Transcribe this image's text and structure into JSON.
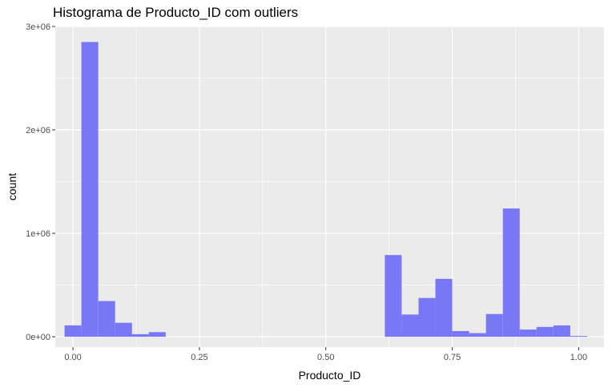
{
  "chart_data": {
    "type": "bar",
    "title": "Histograma de Producto_ID com outliers",
    "xlabel": "Producto_ID",
    "ylabel": "count",
    "xlim": [
      -0.035,
      1.05
    ],
    "ylim": [
      -100000,
      3000000
    ],
    "xticks": [
      0.0,
      0.25,
      0.5,
      0.75,
      1.0
    ],
    "xtick_labels": [
      "0.00",
      "0.25",
      "0.50",
      "0.75",
      "1.00"
    ],
    "yticks": [
      0,
      1000000,
      2000000,
      3000000
    ],
    "ytick_labels": [
      "0e+00",
      "1e+06",
      "2e+06",
      "3e+06"
    ],
    "bin_width": 0.0333,
    "bins": [
      {
        "x": 0.0,
        "count": 110000
      },
      {
        "x": 0.0333,
        "count": 2850000
      },
      {
        "x": 0.0667,
        "count": 345000
      },
      {
        "x": 0.1,
        "count": 135000
      },
      {
        "x": 0.1333,
        "count": 25000
      },
      {
        "x": 0.1667,
        "count": 45000
      },
      {
        "x": 0.2,
        "count": 0
      },
      {
        "x": 0.2333,
        "count": 0
      },
      {
        "x": 0.2667,
        "count": 0
      },
      {
        "x": 0.3,
        "count": 0
      },
      {
        "x": 0.3333,
        "count": 0
      },
      {
        "x": 0.3667,
        "count": 0
      },
      {
        "x": 0.4,
        "count": 0
      },
      {
        "x": 0.4333,
        "count": 0
      },
      {
        "x": 0.4667,
        "count": 0
      },
      {
        "x": 0.5,
        "count": 0
      },
      {
        "x": 0.5333,
        "count": 0
      },
      {
        "x": 0.5667,
        "count": 0
      },
      {
        "x": 0.6,
        "count": 0
      },
      {
        "x": 0.6333,
        "count": 790000
      },
      {
        "x": 0.6667,
        "count": 215000
      },
      {
        "x": 0.7,
        "count": 375000
      },
      {
        "x": 0.7333,
        "count": 560000
      },
      {
        "x": 0.7667,
        "count": 55000
      },
      {
        "x": 0.8,
        "count": 35000
      },
      {
        "x": 0.8333,
        "count": 220000
      },
      {
        "x": 0.8667,
        "count": 1240000
      },
      {
        "x": 0.9,
        "count": 70000
      },
      {
        "x": 0.9333,
        "count": 95000
      },
      {
        "x": 0.9667,
        "count": 110000
      },
      {
        "x": 1.0,
        "count": 8000
      }
    ],
    "fill_color": "#7878f7",
    "panel_color": "#ebebeb",
    "grid_color": "#ffffff",
    "grid": true,
    "legend": "none"
  }
}
